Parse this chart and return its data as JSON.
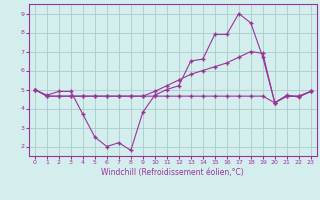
{
  "xlabel": "Windchill (Refroidissement éolien,°C)",
  "bg_color": "#d4eeee",
  "grid_color": "#aacccc",
  "line_color": "#993399",
  "xlim": [
    -0.5,
    23.5
  ],
  "ylim": [
    1.5,
    9.5
  ],
  "xticks": [
    0,
    1,
    2,
    3,
    4,
    5,
    6,
    7,
    8,
    9,
    10,
    11,
    12,
    13,
    14,
    15,
    16,
    17,
    18,
    19,
    20,
    21,
    22,
    23
  ],
  "yticks": [
    2,
    3,
    4,
    5,
    6,
    7,
    8,
    9
  ],
  "line1_x": [
    0,
    1,
    2,
    3,
    4,
    5,
    6,
    7,
    8,
    9,
    10,
    11,
    12,
    13,
    14,
    15,
    16,
    17,
    18,
    19,
    20,
    21,
    22,
    23
  ],
  "line1_y": [
    5.0,
    4.7,
    4.9,
    4.9,
    3.7,
    2.5,
    2.0,
    2.2,
    1.8,
    3.8,
    4.7,
    5.0,
    5.2,
    6.5,
    6.6,
    7.9,
    7.9,
    9.0,
    8.5,
    6.7,
    4.3,
    4.7,
    4.6,
    4.9
  ],
  "line2_x": [
    0,
    1,
    2,
    3,
    4,
    5,
    6,
    7,
    8,
    9,
    10,
    11,
    12,
    13,
    14,
    15,
    16,
    17,
    18,
    19,
    20,
    21,
    22,
    23
  ],
  "line2_y": [
    5.0,
    4.65,
    4.65,
    4.65,
    4.65,
    4.65,
    4.65,
    4.65,
    4.65,
    4.65,
    4.65,
    4.65,
    4.65,
    4.65,
    4.65,
    4.65,
    4.65,
    4.65,
    4.65,
    4.65,
    4.3,
    4.65,
    4.65,
    4.9
  ],
  "line3_x": [
    0,
    1,
    2,
    3,
    4,
    5,
    6,
    7,
    8,
    9,
    10,
    11,
    12,
    13,
    14,
    15,
    16,
    17,
    18,
    19,
    20,
    21,
    22,
    23
  ],
  "line3_y": [
    5.0,
    4.65,
    4.65,
    4.65,
    4.65,
    4.65,
    4.65,
    4.65,
    4.65,
    4.65,
    4.9,
    5.2,
    5.5,
    5.8,
    6.0,
    6.2,
    6.4,
    6.7,
    7.0,
    6.9,
    4.3,
    4.65,
    4.65,
    4.9
  ],
  "marker": "+",
  "markersize": 2.5,
  "linewidth": 0.8,
  "tick_fontsize": 4.5,
  "xlabel_fontsize": 5.5
}
